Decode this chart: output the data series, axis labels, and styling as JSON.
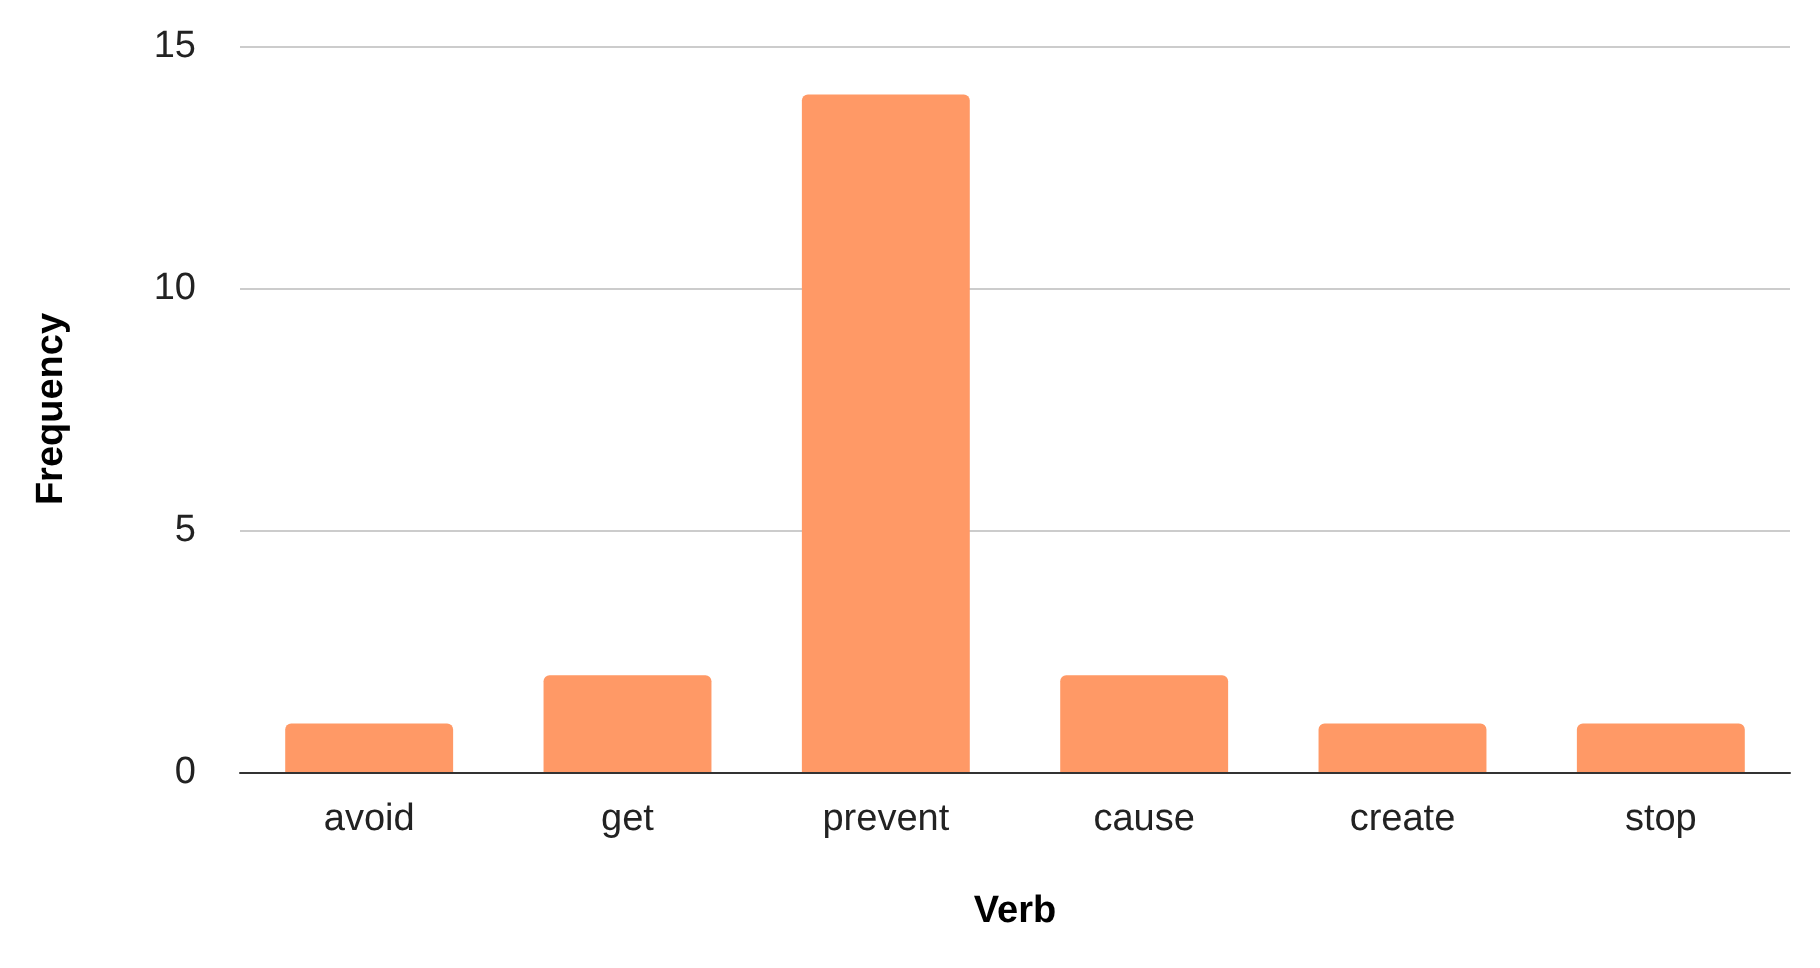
{
  "chart_data": {
    "type": "bar",
    "xlabel": "Verb",
    "ylabel": "Frequency",
    "categories": [
      "avoid",
      "get",
      "prevent",
      "cause",
      "create",
      "stop"
    ],
    "values": [
      1,
      2,
      14,
      2,
      1,
      1
    ],
    "color": "#ff9966",
    "ylim": [
      0,
      15
    ],
    "yticks": [
      0,
      5,
      10,
      15
    ],
    "grid": "y"
  }
}
